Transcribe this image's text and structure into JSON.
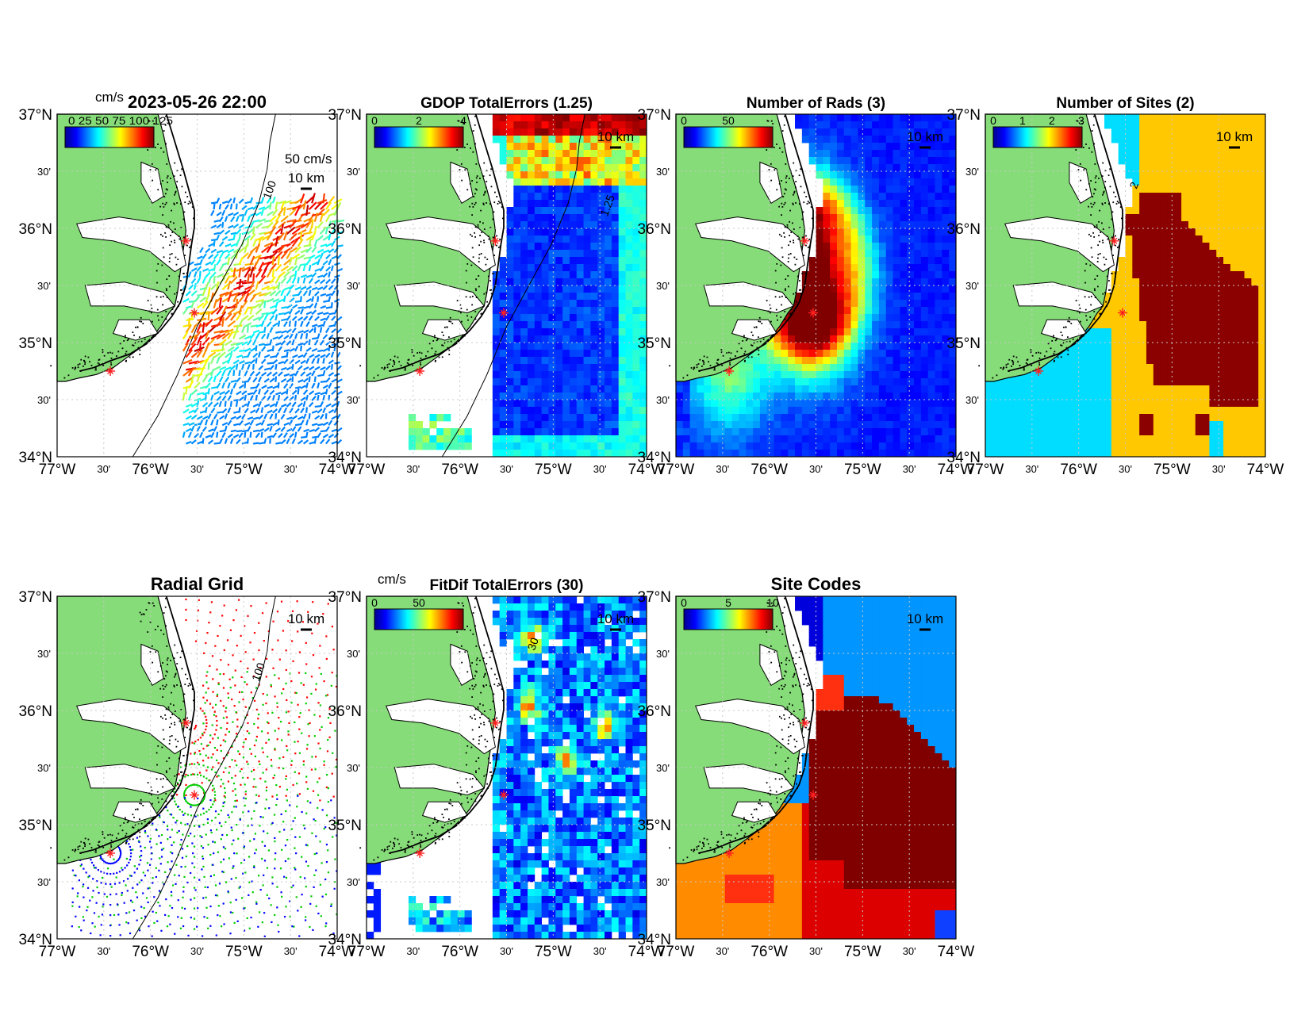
{
  "colors": {
    "land": "#86dc78",
    "coast": "#000000",
    "star": "#ff2020",
    "grid": "#c8c8c8"
  },
  "axis": {
    "lat_deg": [
      "37°N",
      "36°N",
      "35°N",
      "34°N"
    ],
    "lat_min": [
      "30'",
      "30'",
      "30'"
    ],
    "lon_deg": [
      "77°W",
      "76°W",
      "75°W",
      "74°W"
    ],
    "lon_min": [
      "30'",
      "30'",
      "30'"
    ]
  },
  "scale_bar_label": "10 km",
  "panels": [
    {
      "id": "totals",
      "title": "2023-05-26 22:00",
      "cbar_unit": "cm/s",
      "cbar_ticks": [],
      "cbar_overlap_text": "0 25 50 75 100 125",
      "vector_scale_label": "50 cm/s",
      "contour_label": "100",
      "colormap": "jet",
      "fill": "vectors"
    },
    {
      "id": "gdop",
      "title": "GDOP TotalErrors (1.25)",
      "cbar_unit": "",
      "cbar_ticks": [
        "0",
        "2",
        "4"
      ],
      "contour_label": "1.25",
      "colormap": "jet",
      "fill": "gdop"
    },
    {
      "id": "rads",
      "title": "Number of Rads (3)",
      "cbar_unit": "",
      "cbar_ticks": [
        "0",
        "50"
      ],
      "colormap": "jet",
      "fill": "rads"
    },
    {
      "id": "sites",
      "title": "Number of Sites (2)",
      "cbar_unit": "",
      "cbar_ticks": [
        "0",
        "1",
        "2",
        "3"
      ],
      "contour_label": "2",
      "colormap": "jet",
      "fill": "sites"
    },
    {
      "id": "radial",
      "title": "Radial Grid",
      "cbar_unit": "",
      "cbar_ticks": [],
      "contour_label": "100",
      "colormap": "none",
      "fill": "radial"
    },
    {
      "id": "fitdif",
      "title": "FitDif TotalErrors (30)",
      "cbar_unit": "cm/s",
      "cbar_ticks": [
        "0",
        "50"
      ],
      "contour_label": "30",
      "colormap": "jet",
      "fill": "fitdif"
    },
    {
      "id": "codes",
      "title": "Site Codes",
      "cbar_unit": "",
      "cbar_ticks": [
        "0",
        "5",
        "10"
      ],
      "colormap": "jet",
      "fill": "codes"
    }
  ]
}
